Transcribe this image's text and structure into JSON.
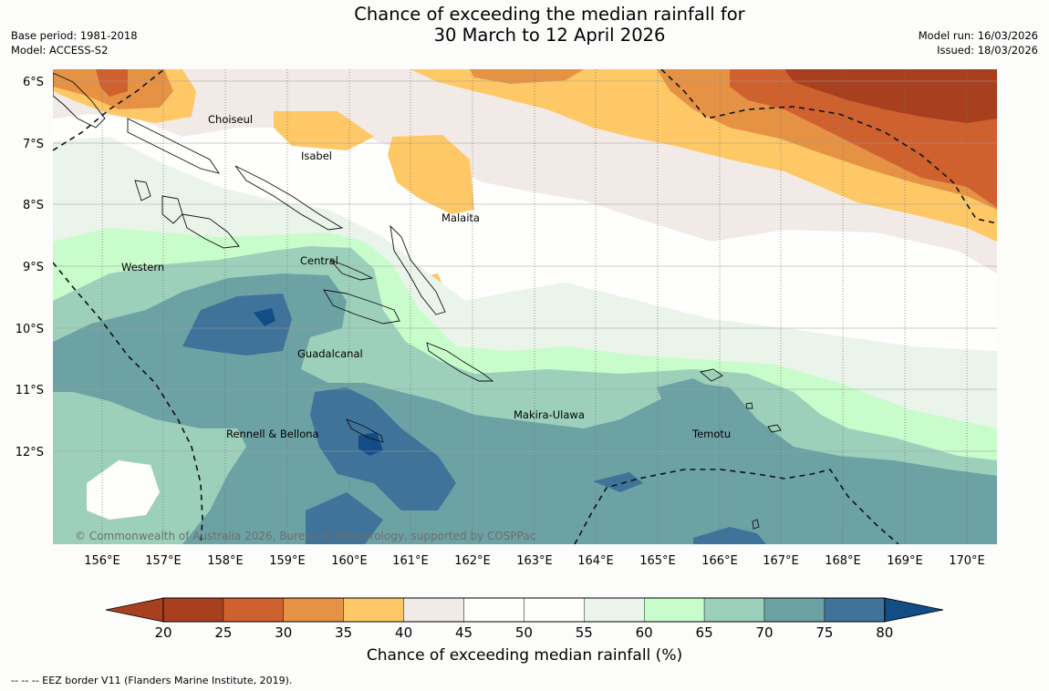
{
  "header": {
    "title_line1": "Chance of exceeding the median rainfall for",
    "title_line2": "30 March to 12 April 2026",
    "base_period": "Base period: 1981-2018",
    "model": "Model: ACCESS-S2",
    "model_run": "Model run: 16/03/2026",
    "issued": "Issued: 18/03/2026"
  },
  "map": {
    "latitude_labels": [
      "6°S",
      "7°S",
      "8°S",
      "9°S",
      "10°S",
      "11°S",
      "12°S"
    ],
    "longitude_labels": [
      "156°E",
      "157°E",
      "158°E",
      "159°E",
      "160°E",
      "161°E",
      "162°E",
      "163°E",
      "164°E",
      "165°E",
      "166°E",
      "167°E",
      "168°E",
      "169°E",
      "170°E"
    ],
    "region_labels": [
      "Choiseul",
      "Isabel",
      "Malaita",
      "Western",
      "Central",
      "Guadalcanal",
      "Makira-Ulawa",
      "Temotu",
      "Rennell & Bellona"
    ],
    "copyright": "© Commonwealth of Australia 2026, Bureau of Meteorology, supported by COSPPac",
    "eez_note": "--  --  -- EEZ border V11 (Flanders Marine Institute, 2019)."
  },
  "colorbar": {
    "title": "Chance of exceeding median rainfall (%)",
    "ticks": [
      "20",
      "25",
      "30",
      "35",
      "40",
      "45",
      "50",
      "55",
      "60",
      "65",
      "70",
      "75",
      "80"
    ],
    "colors": [
      "#a8401f",
      "#cf612f",
      "#e59245",
      "#fec866",
      "#f2eae6",
      "#fefefc",
      "#fefefc",
      "#eaf4ea",
      "#c8fcca",
      "#9dd0bb",
      "#6da2a5",
      "#3f7399",
      "#134d85"
    ]
  }
}
